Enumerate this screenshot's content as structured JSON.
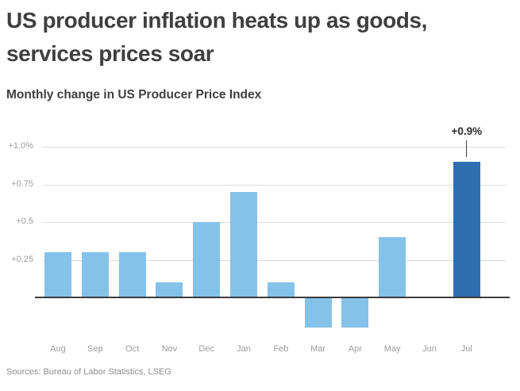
{
  "header": {
    "title_line1": "US producer inflation heats up as goods,",
    "title_line2": "services prices soar",
    "subtitle": "Monthly change in US Producer Price Index"
  },
  "source_note": "Sources: Bureau of Labor Statistics, LSEG",
  "colors": {
    "bar": "#85C2EA",
    "highlight_bar": "#2E6FB2",
    "gridline": "#DCDCDC",
    "zero_line": "#3C3C3C",
    "axis_text": "#9C9C9C",
    "title_text": "#3F3F3F",
    "annotation_text": "#2B2B2B",
    "annotation_line": "#3C3C3C",
    "source_text": "#8F8F8F"
  },
  "chart_data": {
    "type": "bar",
    "title": "Monthly change in US Producer Price Index",
    "categories": [
      "Aug",
      "Sep",
      "Oct",
      "Nov",
      "Dec",
      "Jan",
      "Feb",
      "Mar",
      "Apr",
      "May",
      "Jun",
      "Jul"
    ],
    "values": [
      0.3,
      0.3,
      0.3,
      0.1,
      0.5,
      0.7,
      0.1,
      -0.2,
      -0.2,
      0.4,
      0.0,
      0.9
    ],
    "unit": "%",
    "xlabel": "",
    "ylabel": "",
    "y_ticks": [
      "+1.0%",
      "+0.75",
      "+0.5",
      "+0.25"
    ],
    "y_tick_values": [
      1.0,
      0.75,
      0.5,
      0.25
    ],
    "ylim": [
      -0.25,
      1.0
    ],
    "grid": true,
    "legend": "none",
    "highlight_index": 11,
    "annotation": {
      "index": 11,
      "label": "+0.9%"
    }
  }
}
